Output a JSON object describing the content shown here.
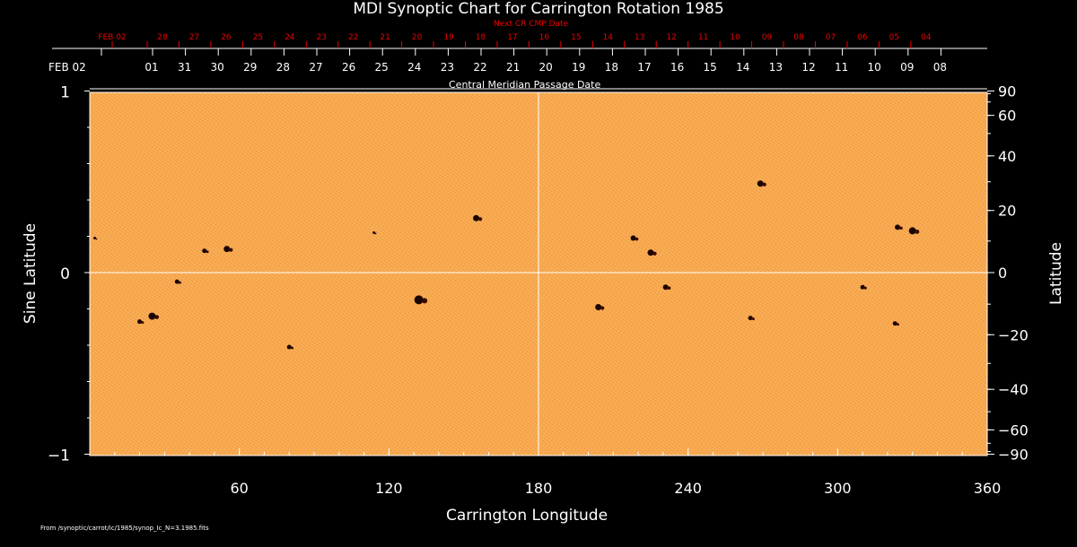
{
  "chart_data": {
    "type": "scatter",
    "title": "MDI Synoptic Chart for Carrington Rotation 1985",
    "xlabel": "Carrington Longitude",
    "ylabel": "Sine Latitude",
    "ylabel_right": "Latitude",
    "top_axis_label": "Central Meridian Passage Date",
    "top_axis_red_label": "Next CR CMP Date",
    "xlim": [
      0,
      360
    ],
    "ylim": [
      -1,
      1
    ],
    "x_ticks": [
      "60",
      "120",
      "180",
      "240",
      "300",
      "360"
    ],
    "y_ticks_left": [
      "1",
      "0",
      "−1"
    ],
    "y_ticks_right": [
      90,
      60,
      40,
      20,
      0,
      -20,
      -40,
      -60,
      -90
    ],
    "cmp_dates": [
      "FEB 02",
      "01",
      "31",
      "30",
      "29",
      "28",
      "27",
      "26",
      "25",
      "24",
      "23",
      "22",
      "21",
      "20",
      "19",
      "18",
      "17",
      "16",
      "15",
      "14",
      "13",
      "12",
      "11",
      "10",
      "09",
      "08"
    ],
    "next_cmp_dates": [
      "FEB 02",
      "28",
      "27",
      "26",
      "25",
      "24",
      "23",
      "22",
      "21",
      "20",
      "19",
      "18",
      "17",
      "16",
      "15",
      "14",
      "13",
      "12",
      "11",
      "10",
      "09",
      "08",
      "07",
      "06",
      "05",
      "04"
    ],
    "sunspots": [
      {
        "lon": 2,
        "sinlat": 0.19,
        "size": 1.5
      },
      {
        "lon": 46,
        "sinlat": 0.12,
        "size": 2.5
      },
      {
        "lon": 55,
        "sinlat": 0.13,
        "size": 3.5
      },
      {
        "lon": 114,
        "sinlat": 0.22,
        "size": 1.5
      },
      {
        "lon": 155,
        "sinlat": 0.3,
        "size": 3.5
      },
      {
        "lon": 35,
        "sinlat": -0.05,
        "size": 2.5
      },
      {
        "lon": 25,
        "sinlat": -0.24,
        "size": 4
      },
      {
        "lon": 20,
        "sinlat": -0.27,
        "size": 2.5
      },
      {
        "lon": 132,
        "sinlat": -0.15,
        "size": 5
      },
      {
        "lon": 80,
        "sinlat": -0.41,
        "size": 2.5
      },
      {
        "lon": 269,
        "sinlat": 0.49,
        "size": 3.5
      },
      {
        "lon": 218,
        "sinlat": 0.19,
        "size": 3
      },
      {
        "lon": 225,
        "sinlat": 0.11,
        "size": 3.5
      },
      {
        "lon": 324,
        "sinlat": 0.25,
        "size": 3
      },
      {
        "lon": 330,
        "sinlat": 0.23,
        "size": 4
      },
      {
        "lon": 204,
        "sinlat": -0.19,
        "size": 3.5
      },
      {
        "lon": 231,
        "sinlat": -0.08,
        "size": 3
      },
      {
        "lon": 265,
        "sinlat": -0.25,
        "size": 2.5
      },
      {
        "lon": 310,
        "sinlat": -0.08,
        "size": 2.5
      },
      {
        "lon": 323,
        "sinlat": -0.28,
        "size": 2.5
      }
    ]
  },
  "footer": "From /synoptic/carrot/ic/1985/synop_Ic_N=3.1985.fits"
}
